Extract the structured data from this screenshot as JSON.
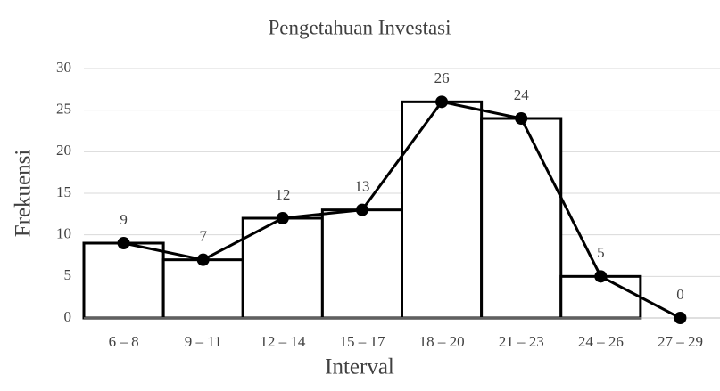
{
  "chart_data": {
    "type": "bar",
    "title": "Pengetahuan Investasi",
    "x_label": "Interval",
    "y_label": "Frekuensi",
    "categories": [
      "6 – 8",
      "9 – 11",
      "12 – 14",
      "15 – 17",
      "18 – 20",
      "21 – 23",
      "24 – 26",
      "27 – 29"
    ],
    "values": [
      9,
      7,
      12,
      13,
      26,
      24,
      5,
      0
    ],
    "bar_color": "#ffffff",
    "line_overlay": true,
    "line_color": "#000000",
    "ylim": [
      0,
      30
    ],
    "yticks": [
      0,
      5,
      10,
      15,
      20,
      25,
      30
    ],
    "grid": true
  }
}
